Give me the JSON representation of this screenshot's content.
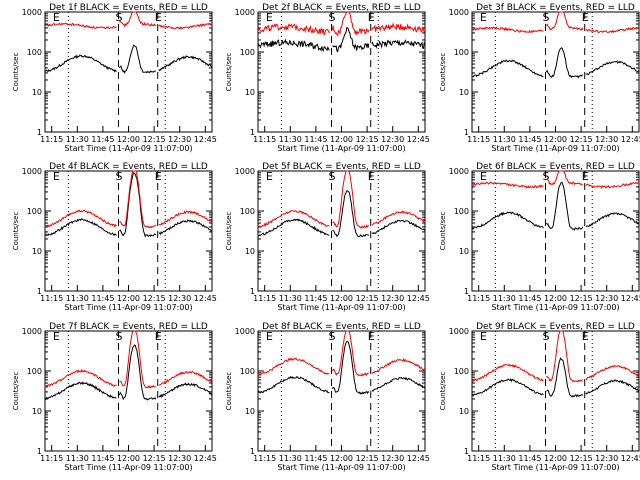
{
  "chart_data": [
    {
      "type": "line",
      "title": "Det 1f BLACK = Events, RED = LLD",
      "xlabel": "Start Time (11-Apr-09 11:07:00)",
      "ylabel": "Counts/sec",
      "yscale": "log",
      "ylim": [
        1,
        1000
      ],
      "xlim": [
        11.117,
        12.75
      ],
      "xticks": [
        "11:15",
        "11:30",
        "11:45",
        "12:00",
        "12:15",
        "12:30",
        "12:45"
      ],
      "yticks": [
        "1",
        "10",
        "100",
        "1000"
      ],
      "markers": [
        "E",
        "S",
        "E"
      ],
      "series": [
        {
          "name": "Events",
          "color": "#000000",
          "profile": "orbit",
          "base": 80,
          "peak": 130
        },
        {
          "name": "LLD",
          "color": "#ff0000",
          "profile": "flat",
          "base": 500,
          "peak": 900
        }
      ]
    },
    {
      "type": "line",
      "title": "Det 2f BLACK = Events, RED = LLD",
      "xlabel": "Start Time (11-Apr-09 11:07:00)",
      "ylabel": "Counts/sec",
      "yscale": "log",
      "ylim": [
        1,
        1000
      ],
      "xlim": [
        11.117,
        12.75
      ],
      "xticks": [
        "11:15",
        "11:30",
        "11:45",
        "12:00",
        "12:15",
        "12:30",
        "12:45"
      ],
      "yticks": [
        "1",
        "10",
        "100",
        "1000"
      ],
      "markers": [
        "E",
        "S",
        "E"
      ],
      "series": [
        {
          "name": "Events",
          "color": "#000000",
          "profile": "noisy",
          "base": 180,
          "peak": 300
        },
        {
          "name": "LLD",
          "color": "#ff0000",
          "profile": "noisy",
          "base": 450,
          "peak": 1000
        }
      ]
    },
    {
      "type": "line",
      "title": "Det 3f BLACK = Events, RED = LLD",
      "xlabel": "Start Time (11-Apr-09 11:07:00)",
      "ylabel": "Counts/sec",
      "yscale": "log",
      "ylim": [
        1,
        1000
      ],
      "xlim": [
        11.117,
        12.75
      ],
      "xticks": [
        "11:15",
        "11:30",
        "11:45",
        "12:00",
        "12:15",
        "12:30",
        "12:45"
      ],
      "yticks": [
        "1",
        "10",
        "100",
        "1000"
      ],
      "markers": [
        "E",
        "S",
        "E"
      ],
      "series": [
        {
          "name": "Events",
          "color": "#000000",
          "profile": "orbit",
          "base": 60,
          "peak": 110
        },
        {
          "name": "LLD",
          "color": "#ff0000",
          "profile": "flat",
          "base": 400,
          "peak": 1000
        }
      ]
    },
    {
      "type": "line",
      "title": "Det 4f BLACK = Events, RED = LLD",
      "xlabel": "Start Time (11-Apr-09 11:07:00)",
      "ylabel": "Counts/sec",
      "yscale": "log",
      "ylim": [
        1,
        1000
      ],
      "xlim": [
        11.117,
        12.75
      ],
      "xticks": [
        "11:15",
        "11:30",
        "11:45",
        "12:00",
        "12:15",
        "12:30",
        "12:45"
      ],
      "yticks": [
        "1",
        "10",
        "100",
        "1000"
      ],
      "markers": [
        "E",
        "S",
        "E"
      ],
      "series": [
        {
          "name": "Events",
          "color": "#000000",
          "profile": "orbit",
          "base": 60,
          "peak": 800
        },
        {
          "name": "LLD",
          "color": "#ff0000",
          "profile": "orbit",
          "base": 100,
          "peak": 1000
        }
      ]
    },
    {
      "type": "line",
      "title": "Det 5f BLACK = Events, RED = LLD",
      "xlabel": "Start Time (11-Apr-09 11:07:00)",
      "ylabel": "Counts/sec",
      "yscale": "log",
      "ylim": [
        1,
        1000
      ],
      "xlim": [
        11.117,
        12.75
      ],
      "xticks": [
        "11:15",
        "11:30",
        "11:45",
        "12:00",
        "12:15",
        "12:30",
        "12:45"
      ],
      "yticks": [
        "1",
        "10",
        "100",
        "1000"
      ],
      "markers": [
        "E",
        "S",
        "E"
      ],
      "series": [
        {
          "name": "Events",
          "color": "#000000",
          "profile": "orbit",
          "base": 60,
          "peak": 300
        },
        {
          "name": "LLD",
          "color": "#ff0000",
          "profile": "orbit",
          "base": 100,
          "peak": 1000
        }
      ]
    },
    {
      "type": "line",
      "title": "Det 6f BLACK = Events, RED = LLD",
      "xlabel": "Start Time (11-Apr-09 11:07:00)",
      "ylabel": "Counts/sec",
      "yscale": "log",
      "ylim": [
        1,
        1000
      ],
      "xlim": [
        11.117,
        12.75
      ],
      "xticks": [
        "11:15",
        "11:30",
        "11:45",
        "12:00",
        "12:15",
        "12:30",
        "12:45"
      ],
      "yticks": [
        "1",
        "10",
        "100",
        "1000"
      ],
      "markers": [
        "E",
        "S",
        "E"
      ],
      "series": [
        {
          "name": "Events",
          "color": "#000000",
          "profile": "orbit",
          "base": 90,
          "peak": 450
        },
        {
          "name": "LLD",
          "color": "#ff0000",
          "profile": "flat",
          "base": 500,
          "peak": 1000
        }
      ]
    },
    {
      "type": "line",
      "title": "Det 7f BLACK = Events, RED = LLD",
      "xlabel": "Start Time (11-Apr-09 11:07:00)",
      "ylabel": "Counts/sec",
      "yscale": "log",
      "ylim": [
        1,
        1000
      ],
      "xlim": [
        11.117,
        12.75
      ],
      "xticks": [
        "11:15",
        "11:30",
        "11:45",
        "12:00",
        "12:15",
        "12:30",
        "12:45"
      ],
      "yticks": [
        "1",
        "10",
        "100",
        "1000"
      ],
      "markers": [
        "E",
        "S",
        "E"
      ],
      "series": [
        {
          "name": "Events",
          "color": "#000000",
          "profile": "orbit",
          "base": 50,
          "peak": 400
        },
        {
          "name": "LLD",
          "color": "#ff0000",
          "profile": "orbit",
          "base": 100,
          "peak": 1000
        }
      ]
    },
    {
      "type": "line",
      "title": "Det 8f BLACK = Events, RED = LLD",
      "xlabel": "Start Time (11-Apr-09 11:07:00)",
      "ylabel": "Counts/sec",
      "yscale": "log",
      "ylim": [
        1,
        1000
      ],
      "xlim": [
        11.117,
        12.75
      ],
      "xticks": [
        "11:15",
        "11:30",
        "11:45",
        "12:00",
        "12:15",
        "12:30",
        "12:45"
      ],
      "yticks": [
        "1",
        "10",
        "100",
        "1000"
      ],
      "markers": [
        "E",
        "S",
        "E"
      ],
      "series": [
        {
          "name": "Events",
          "color": "#000000",
          "profile": "orbit",
          "base": 70,
          "peak": 500
        },
        {
          "name": "LLD",
          "color": "#ff0000",
          "profile": "orbit",
          "base": 200,
          "peak": 1000
        }
      ]
    },
    {
      "type": "line",
      "title": "Det 9f BLACK = Events, RED = LLD",
      "xlabel": "Start Time (11-Apr-09 11:07:00)",
      "ylabel": "Counts/sec",
      "yscale": "log",
      "ylim": [
        1,
        1000
      ],
      "xlim": [
        11.117,
        12.75
      ],
      "xticks": [
        "11:15",
        "11:30",
        "11:45",
        "12:00",
        "12:15",
        "12:30",
        "12:45"
      ],
      "yticks": [
        "1",
        "10",
        "100",
        "1000"
      ],
      "markers": [
        "E",
        "S",
        "E"
      ],
      "series": [
        {
          "name": "Events",
          "color": "#000000",
          "profile": "orbit",
          "base": 60,
          "peak": 180
        },
        {
          "name": "LLD",
          "color": "#ff0000",
          "profile": "orbit",
          "base": 140,
          "peak": 1000
        }
      ]
    }
  ]
}
